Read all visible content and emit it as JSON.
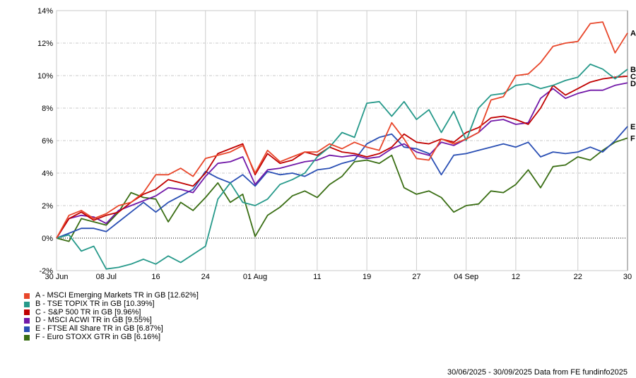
{
  "chart_data": {
    "type": "line",
    "title": "",
    "xlabel": "",
    "ylabel": "",
    "ylim": [
      -2,
      14
    ],
    "yticks": [
      -2,
      0,
      2,
      4,
      6,
      8,
      10,
      12,
      14
    ],
    "ytick_labels": [
      "-2%",
      "0%",
      "2%",
      "4%",
      "6%",
      "8%",
      "10%",
      "12%",
      "14%"
    ],
    "xlim": [
      0,
      92
    ],
    "x_unit": "days since 30 Jun 2025",
    "xticks": [
      0,
      8,
      16,
      24,
      32,
      42,
      50,
      58,
      66,
      74,
      84,
      92
    ],
    "xtick_labels": [
      "30 Jun",
      "08 Jul",
      "16",
      "24",
      "01 Aug",
      "11",
      "19",
      "27",
      "04 Sep",
      "12",
      "22",
      "30"
    ],
    "grid": true,
    "legend_position": "bottom-left",
    "x": [
      0,
      2,
      4,
      6,
      8,
      10,
      12,
      14,
      16,
      18,
      20,
      22,
      24,
      26,
      28,
      30,
      32,
      34,
      36,
      38,
      40,
      42,
      44,
      46,
      48,
      50,
      52,
      54,
      56,
      58,
      60,
      62,
      64,
      66,
      68,
      70,
      72,
      74,
      76,
      78,
      80,
      82,
      84,
      86,
      88,
      90,
      92
    ],
    "series": [
      {
        "id": "A",
        "name": "A - MSCI Emerging Markets TR in GB [12.62%]",
        "color": "#e8462a",
        "values": [
          0,
          1.4,
          1.7,
          1.2,
          1.5,
          2.0,
          2.2,
          2.8,
          3.9,
          3.9,
          4.3,
          3.8,
          4.9,
          5.1,
          5.3,
          5.7,
          4.0,
          5.4,
          4.7,
          5.0,
          5.3,
          5.3,
          5.8,
          5.5,
          5.9,
          5.6,
          5.4,
          7.1,
          6.1,
          4.9,
          4.8,
          6.1,
          5.8,
          6.1,
          6.5,
          8.5,
          8.7,
          10.0,
          10.1,
          10.8,
          11.8,
          12.0,
          12.1,
          13.2,
          13.3,
          11.4,
          12.62
        ]
      },
      {
        "id": "B",
        "name": "B - TSE TOPIX TR in GB [10.39%]",
        "color": "#26998a",
        "values": [
          0,
          0.2,
          -0.8,
          -0.5,
          -1.9,
          -1.8,
          -1.6,
          -1.3,
          -1.6,
          -1.1,
          -1.5,
          -1.0,
          -0.5,
          2.4,
          3.4,
          2.2,
          2.0,
          2.4,
          3.3,
          3.6,
          4.0,
          5.0,
          5.6,
          6.5,
          6.2,
          8.3,
          8.4,
          7.5,
          8.4,
          7.3,
          7.9,
          6.5,
          7.8,
          6.0,
          8.0,
          8.8,
          8.9,
          9.4,
          9.5,
          9.2,
          9.4,
          9.7,
          9.9,
          10.7,
          10.4,
          9.8,
          10.39
        ]
      },
      {
        "id": "C",
        "name": "C - S&P 500 TR in GB [9.96%]",
        "color": "#c00000",
        "values": [
          0,
          1.2,
          1.6,
          1.1,
          1.4,
          1.6,
          2.2,
          2.7,
          3.0,
          3.6,
          3.4,
          3.2,
          4.0,
          5.2,
          5.5,
          5.8,
          3.9,
          5.2,
          4.6,
          4.8,
          5.3,
          5.1,
          5.6,
          5.3,
          5.2,
          5.0,
          5.2,
          5.6,
          6.4,
          5.9,
          5.8,
          6.1,
          5.9,
          6.5,
          6.8,
          7.4,
          7.5,
          7.3,
          7.0,
          8.0,
          9.4,
          8.8,
          9.2,
          9.6,
          9.8,
          9.9,
          9.96
        ]
      },
      {
        "id": "D",
        "name": "D - MSCI ACWI TR in GB [9.55%]",
        "color": "#7219a8",
        "values": [
          0,
          1.2,
          1.4,
          1.3,
          0.9,
          1.7,
          2.0,
          2.3,
          2.6,
          3.1,
          3.0,
          2.8,
          3.8,
          4.6,
          4.7,
          5.0,
          3.3,
          4.2,
          4.3,
          4.5,
          4.7,
          4.8,
          5.1,
          5.0,
          5.1,
          4.9,
          5.0,
          5.5,
          5.8,
          5.3,
          5.1,
          5.9,
          5.7,
          6.1,
          6.5,
          7.2,
          7.3,
          7.0,
          7.1,
          8.6,
          9.2,
          8.6,
          8.9,
          9.1,
          9.1,
          9.4,
          9.55
        ]
      },
      {
        "id": "E",
        "name": "E - FTSE All Share TR in GB [6.87%]",
        "color": "#2a4fb4",
        "values": [
          0,
          0.3,
          0.6,
          0.6,
          0.4,
          1.0,
          1.6,
          2.2,
          1.6,
          2.2,
          2.6,
          3.0,
          4.1,
          3.7,
          3.4,
          3.9,
          3.2,
          4.1,
          3.9,
          4.0,
          3.8,
          4.2,
          4.3,
          4.6,
          4.8,
          5.8,
          6.2,
          6.4,
          5.6,
          5.5,
          5.2,
          3.9,
          5.1,
          5.2,
          5.4,
          5.6,
          5.8,
          5.6,
          5.9,
          5.0,
          5.3,
          5.2,
          5.3,
          5.6,
          5.3,
          6.0,
          6.87
        ]
      },
      {
        "id": "F",
        "name": "F - Euro STOXX GTR in GB [6.16%]",
        "color": "#3a6e14",
        "values": [
          0,
          -0.2,
          1.2,
          1.0,
          0.8,
          1.6,
          2.8,
          2.5,
          2.4,
          1.0,
          2.2,
          1.7,
          2.5,
          3.4,
          2.2,
          2.7,
          0.1,
          1.4,
          1.9,
          2.6,
          2.9,
          2.5,
          3.3,
          3.8,
          4.7,
          4.8,
          4.6,
          5.1,
          3.1,
          2.7,
          2.9,
          2.5,
          1.6,
          2.0,
          2.1,
          2.9,
          2.8,
          3.3,
          4.2,
          3.1,
          4.4,
          4.5,
          5.0,
          4.8,
          5.4,
          5.9,
          6.16
        ]
      }
    ]
  },
  "footer": "30/06/2025 - 30/09/2025 Data from FE fundinfo2025"
}
